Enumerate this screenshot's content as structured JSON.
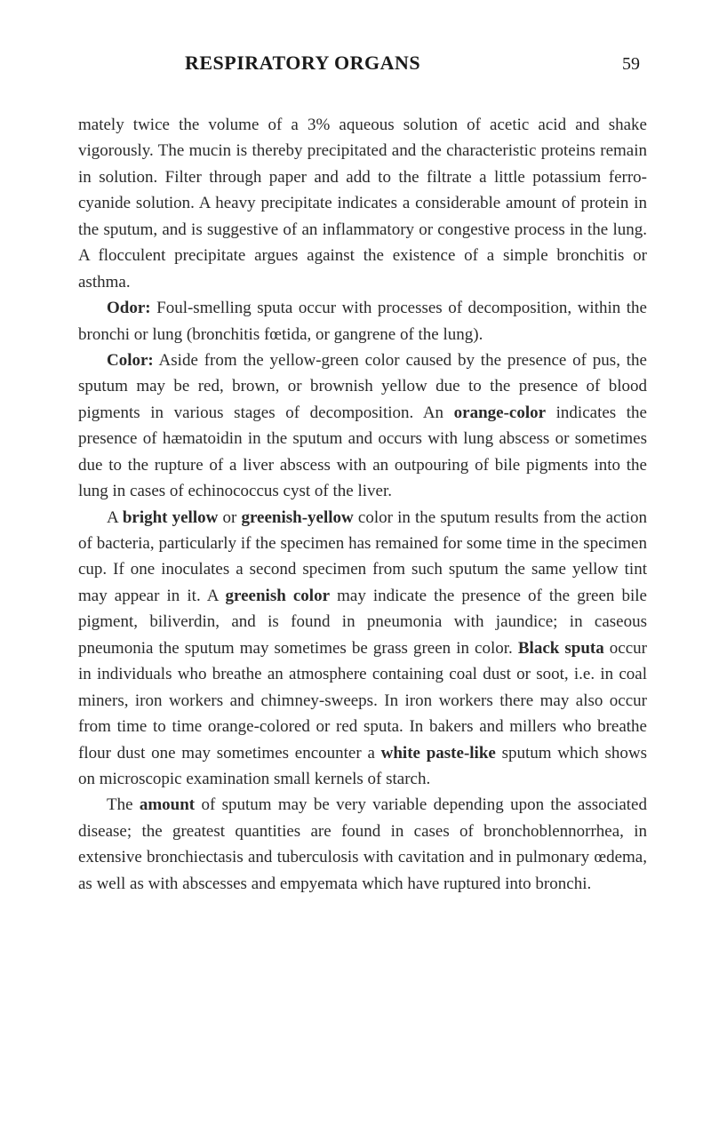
{
  "header": {
    "title": "RESPIRATORY ORGANS",
    "page_number": "59"
  },
  "paragraphs": {
    "p1": {
      "text": "mately twice the volume of a 3% aqueous solution of acetic acid and shake vigorously. The mucin is thereby precipitated and the characteristic proteins remain in solution. Filter through paper and add to the filtrate a little potassium ferro-cyanide solution. A heavy precipitate indicates a considerable amount of protein in the sputum, and is suggestive of an inflammatory or congestive process in the lung. A flocculent precipitate argues against the existence of a simple bronchitis or asthma."
    },
    "p2": {
      "label": "Odor:",
      "text": " Foul-smelling sputa occur with processes of decom­position, within the bronchi or lung (bronchitis fœtida, or gangrene of the lung)."
    },
    "p3": {
      "label": "Color:",
      "text1": " Aside from the yellow-green color caused by the presence of pus, the sputum may be red, brown, or brownish yellow due to the presence of blood pigments in various stages of decomposition. An ",
      "bold1": "orange-color",
      "text2": " indicates the presence of hæmatoidin in the sputum and occurs with lung abscess or sometimes due to the rupture of a liver abscess with an out­pouring of bile pigments into the lung in cases of echinococcus cyst of the liver."
    },
    "p4": {
      "text1": "A ",
      "bold1": "bright yellow",
      "text2": " or ",
      "bold2": "greenish-yellow",
      "text3": " color in the sputum results from the action of bacteria, particularly if the speci­men has remained for some time in the specimen cup. If one inoculates a second specimen from such sputum the same yellow tint may appear in it. A ",
      "bold3": "greenish color",
      "text4": " may indicate the presence of the green bile pigment, biliverdin, and is found in pneumonia with jaundice; in caseous pneumonia the sputum may sometimes be grass green in color. ",
      "bold4": "Black sputa",
      "text5": " occur in individuals who breathe an atmosphere containing coal dust or soot, i.e. in coal miners, iron workers and chim­ney-sweeps. In iron workers there may also occur from time to time orange-colored or red sputa. In bakers and millers who breathe flour dust one may sometimes encounter a ",
      "bold5": "white paste-like",
      "text6": " sputum which shows on microscopic examination small kernels of starch."
    },
    "p5": {
      "text1": "The ",
      "bold1": "amount",
      "text2": " of sputum may be very variable depending upon the associated disease; the greatest quantities are found in cases of bronchoblennorrhea, in extensive bronchiectasis and tuberculosis with cavitation and in pulmonary œdema, as well as with abscesses and empyemata which have ruptured into bronchi."
    }
  }
}
